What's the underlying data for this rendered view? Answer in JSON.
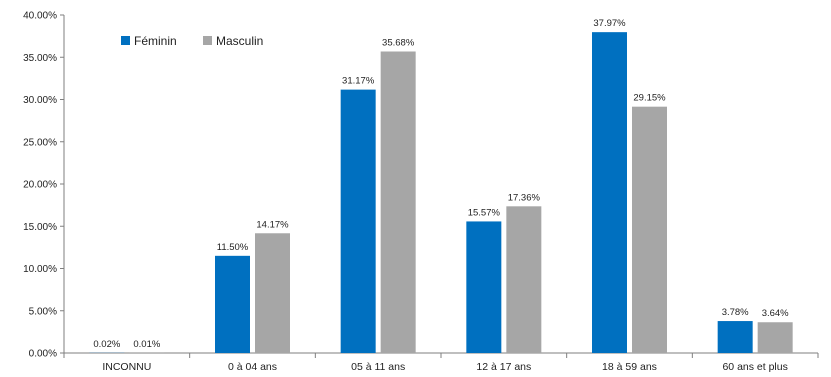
{
  "chart_data": {
    "type": "bar",
    "categories": [
      "INCONNU",
      "0 à 04 ans",
      "05 à 11 ans",
      "12 à 17 ans",
      "18 à 59 ans",
      "60 ans et plus"
    ],
    "series": [
      {
        "name": "Féminin",
        "color": "#0070C0",
        "values": [
          0.02,
          11.5,
          31.17,
          15.57,
          37.97,
          3.78
        ],
        "labels": [
          "0.02%",
          "11.50%",
          "31.17%",
          "15.57%",
          "37.97%",
          "3.78%"
        ]
      },
      {
        "name": "Masculin",
        "color": "#A6A6A6",
        "values": [
          0.01,
          14.17,
          35.68,
          17.36,
          29.15,
          3.64
        ],
        "labels": [
          "0.01%",
          "14.17%",
          "35.68%",
          "17.36%",
          "29.15%",
          "3.64%"
        ]
      }
    ],
    "title": "",
    "xlabel": "",
    "ylabel": "",
    "ylim": [
      0,
      40
    ],
    "yticks": [
      "0.00%",
      "5.00%",
      "10.00%",
      "15.00%",
      "20.00%",
      "25.00%",
      "30.00%",
      "35.00%",
      "40.00%"
    ],
    "legend_position": "top-left",
    "grid": false
  }
}
